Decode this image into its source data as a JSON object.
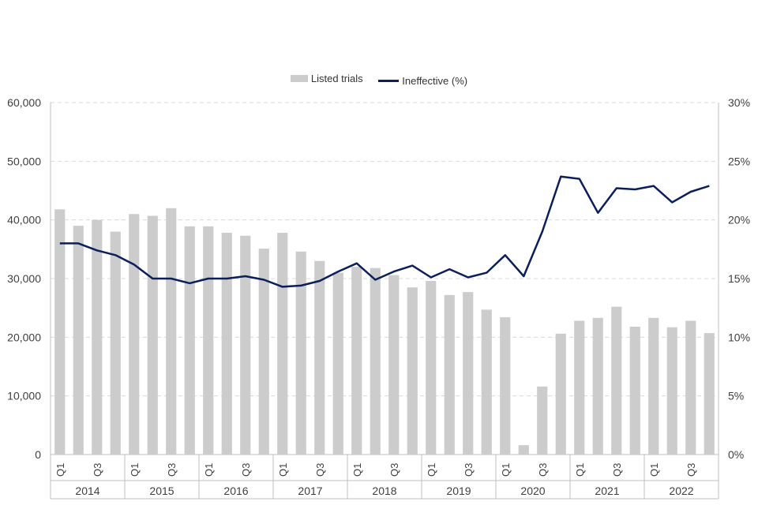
{
  "legend": {
    "bar_label": "Listed trials",
    "line_label": "Ineffective (%)"
  },
  "colors": {
    "bar": "#cccccc",
    "line": "#0b1f5c",
    "grid": "#d9d9d9",
    "axis_text": "#404040"
  },
  "chart_data": {
    "type": "bar",
    "secondary_type": "line",
    "title": "",
    "quarter_labels": [
      "Q1",
      "Q3"
    ],
    "years": [
      "2014",
      "2015",
      "2016",
      "2017",
      "2018",
      "2019",
      "2020",
      "2021",
      "2022"
    ],
    "quarters_per_year": 4,
    "categories": [
      "2014 Q1",
      "2014 Q2",
      "2014 Q3",
      "2014 Q4",
      "2015 Q1",
      "2015 Q2",
      "2015 Q3",
      "2015 Q4",
      "2016 Q1",
      "2016 Q2",
      "2016 Q3",
      "2016 Q4",
      "2017 Q1",
      "2017 Q2",
      "2017 Q3",
      "2017 Q4",
      "2018 Q1",
      "2018 Q2",
      "2018 Q3",
      "2018 Q4",
      "2019 Q1",
      "2019 Q2",
      "2019 Q3",
      "2019 Q4",
      "2020 Q1",
      "2020 Q2",
      "2020 Q3",
      "2020 Q4",
      "2021 Q1",
      "2021 Q2",
      "2021 Q3",
      "2021 Q4",
      "2022 Q1",
      "2022 Q2",
      "2022 Q3",
      "2022 Q4"
    ],
    "series": [
      {
        "name": "Listed trials",
        "axis": "left",
        "type": "bar",
        "values": [
          41800,
          39000,
          40000,
          38000,
          41000,
          40700,
          42000,
          38900,
          38900,
          37800,
          37300,
          35100,
          37800,
          34600,
          33000,
          31000,
          32000,
          31800,
          30600,
          28500,
          29600,
          27200,
          27700,
          24700,
          23400,
          1600,
          11600,
          20600,
          22800,
          23300,
          25200,
          21800,
          23300,
          21700,
          22800,
          20700
        ]
      },
      {
        "name": "Ineffective (%)",
        "axis": "right",
        "type": "line",
        "values": [
          18.0,
          18.0,
          17.4,
          17.0,
          16.2,
          15.0,
          15.0,
          14.6,
          15.0,
          15.0,
          15.2,
          14.9,
          14.3,
          14.4,
          14.8,
          15.6,
          16.3,
          14.9,
          15.6,
          16.1,
          15.1,
          15.8,
          15.1,
          15.5,
          17.0,
          15.2,
          19.0,
          23.7,
          23.5,
          20.6,
          22.7,
          22.6,
          22.9,
          21.5,
          22.4,
          22.9
        ]
      }
    ],
    "y_left": {
      "min": 0,
      "max": 60000,
      "ticks": [
        "0",
        "10,000",
        "20,000",
        "30,000",
        "40,000",
        "50,000",
        "60,000"
      ]
    },
    "y_right": {
      "min": 0,
      "max": 30,
      "ticks": [
        "0%",
        "5%",
        "10%",
        "15%",
        "20%",
        "25%",
        "30%"
      ]
    },
    "grid": true,
    "legend_position": "top"
  }
}
